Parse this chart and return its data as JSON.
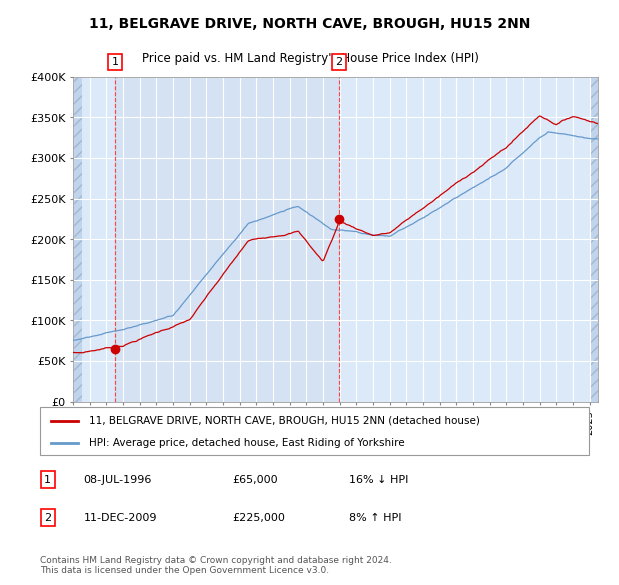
{
  "title": "11, BELGRAVE DRIVE, NORTH CAVE, BROUGH, HU15 2NN",
  "subtitle": "Price paid vs. HM Land Registry's House Price Index (HPI)",
  "red_label": "11, BELGRAVE DRIVE, NORTH CAVE, BROUGH, HU15 2NN (detached house)",
  "blue_label": "HPI: Average price, detached house, East Riding of Yorkshire",
  "annotation1_label": "1",
  "annotation1_date": "08-JUL-1996",
  "annotation1_price": "£65,000",
  "annotation1_hpi": "16% ↓ HPI",
  "annotation1_year": 1996.52,
  "annotation1_value": 65000,
  "annotation2_label": "2",
  "annotation2_date": "11-DEC-2009",
  "annotation2_price": "£225,000",
  "annotation2_hpi": "8% ↑ HPI",
  "annotation2_year": 2009.94,
  "annotation2_value": 225000,
  "footer": "Contains HM Land Registry data © Crown copyright and database right 2024.\nThis data is licensed under the Open Government Licence v3.0.",
  "ylim": [
    0,
    400000
  ],
  "yticks": [
    0,
    50000,
    100000,
    150000,
    200000,
    250000,
    300000,
    350000,
    400000
  ],
  "ytick_labels": [
    "£0",
    "£50K",
    "£100K",
    "£150K",
    "£200K",
    "£250K",
    "£300K",
    "£350K",
    "£400K"
  ],
  "background_color": "#dce9f8",
  "hatch_color": "#c0d4ec",
  "red_color": "#cc0000",
  "blue_color": "#6699cc",
  "grid_color": "#ffffff",
  "vline_color": "#ff4444",
  "xlim_start": 1994.0,
  "xlim_end": 2025.5
}
